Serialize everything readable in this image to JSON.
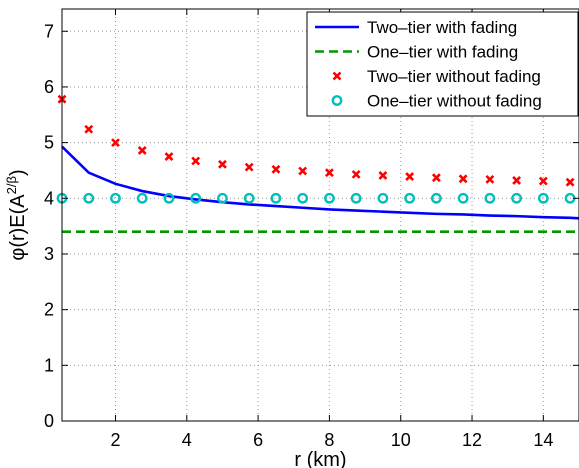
{
  "chart_data": {
    "type": "line",
    "title": "",
    "xlabel": "r (km)",
    "ylabel": "φ(r)E(A^{2/β})",
    "xlim": [
      0.5,
      15
    ],
    "ylim": [
      0,
      7.4
    ],
    "xticks": [
      2,
      4,
      6,
      8,
      10,
      12,
      14
    ],
    "yticks": [
      0,
      1,
      2,
      3,
      4,
      5,
      6,
      7
    ],
    "grid": true,
    "legend_position": "top-right",
    "series": [
      {
        "name": "Two–tier with fading",
        "style": "solid-line",
        "color": "#0000ff",
        "x": [
          0.5,
          1.25,
          2.0,
          2.75,
          3.5,
          4.25,
          5.0,
          5.75,
          6.5,
          7.25,
          8.0,
          8.75,
          9.5,
          10.25,
          11.0,
          11.75,
          12.5,
          13.25,
          14.0,
          14.75,
          15.0
        ],
        "y": [
          4.93,
          4.46,
          4.26,
          4.13,
          4.04,
          3.98,
          3.93,
          3.89,
          3.86,
          3.83,
          3.8,
          3.78,
          3.76,
          3.74,
          3.72,
          3.71,
          3.69,
          3.68,
          3.66,
          3.65,
          3.64
        ]
      },
      {
        "name": "One–tier with fading",
        "style": "dashed-line",
        "color": "#009900",
        "x": [
          0.5,
          15.0
        ],
        "y": [
          3.4,
          3.4
        ]
      },
      {
        "name": "Two–tier without fading",
        "style": "x-markers",
        "color": "#ff0000",
        "x": [
          0.5,
          1.25,
          2.0,
          2.75,
          3.5,
          4.25,
          5.0,
          5.75,
          6.5,
          7.25,
          8.0,
          8.75,
          9.5,
          10.25,
          11.0,
          11.75,
          12.5,
          13.25,
          14.0,
          14.75
        ],
        "y": [
          5.78,
          5.24,
          5.0,
          4.86,
          4.75,
          4.67,
          4.61,
          4.56,
          4.52,
          4.49,
          4.46,
          4.43,
          4.41,
          4.39,
          4.37,
          4.35,
          4.34,
          4.32,
          4.31,
          4.29
        ]
      },
      {
        "name": "One–tier without fading",
        "style": "o-markers",
        "color": "#00bfbf",
        "x": [
          0.5,
          1.25,
          2.0,
          2.75,
          3.5,
          4.25,
          5.0,
          5.75,
          6.5,
          7.25,
          8.0,
          8.75,
          9.5,
          10.25,
          11.0,
          11.75,
          12.5,
          13.25,
          14.0,
          14.75
        ],
        "y": [
          4.0,
          4.0,
          4.0,
          4.0,
          4.0,
          4.0,
          4.0,
          4.0,
          4.0,
          4.0,
          4.0,
          4.0,
          4.0,
          4.0,
          4.0,
          4.0,
          4.0,
          4.0,
          4.0,
          4.0
        ]
      }
    ]
  }
}
